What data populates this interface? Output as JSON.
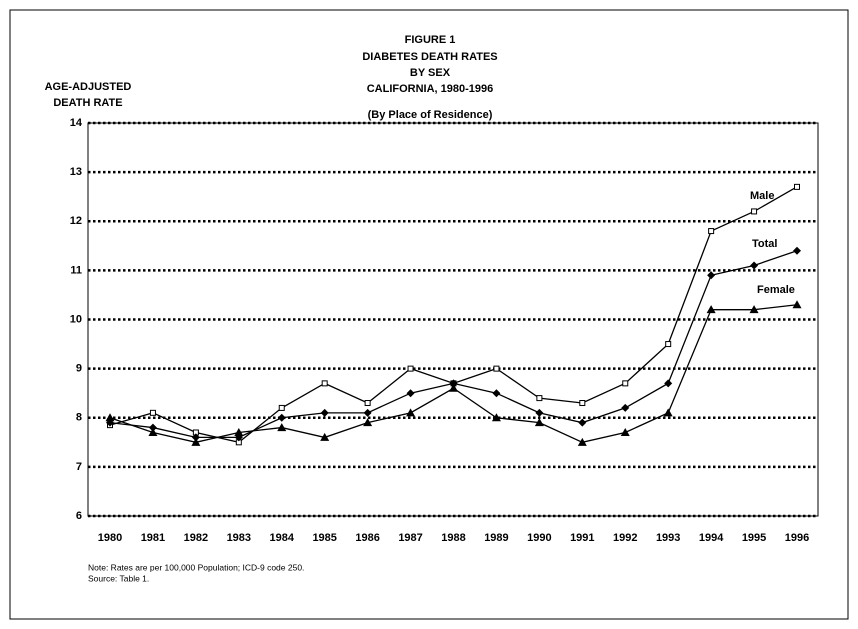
{
  "chart_data": {
    "type": "line",
    "title": [
      "FIGURE 1",
      "DIABETES DEATH RATES",
      "BY SEX",
      "CALIFORNIA, 1980-1996",
      "(By Place of Residence)"
    ],
    "y_label": [
      "AGE-ADJUSTED",
      "DEATH RATE"
    ],
    "categories": [
      "1980",
      "1981",
      "1982",
      "1983",
      "1984",
      "1985",
      "1986",
      "1987",
      "1988",
      "1989",
      "1990",
      "1991",
      "1992",
      "1993",
      "1994",
      "1995",
      "1996"
    ],
    "series": [
      {
        "name": "Male",
        "color": "#000000",
        "marker": "square",
        "values": [
          7.85,
          8.1,
          7.7,
          7.5,
          8.2,
          8.7,
          8.3,
          9.0,
          8.7,
          9.0,
          8.4,
          8.3,
          8.7,
          9.5,
          11.8,
          12.2,
          12.7
        ]
      },
      {
        "name": "Total",
        "color": "#000000",
        "marker": "diamond",
        "values": [
          7.9,
          7.8,
          7.6,
          7.6,
          8.0,
          8.1,
          8.1,
          8.5,
          8.7,
          8.5,
          8.1,
          7.9,
          8.2,
          8.7,
          10.9,
          11.1,
          11.4
        ]
      },
      {
        "name": "Female",
        "color": "#000000",
        "marker": "triangle",
        "values": [
          8.0,
          7.7,
          7.5,
          7.7,
          7.8,
          7.6,
          7.9,
          8.1,
          8.6,
          8.0,
          7.9,
          7.5,
          7.7,
          8.1,
          10.2,
          10.2,
          10.3
        ]
      }
    ],
    "ylim": [
      6,
      14
    ],
    "yticks": [
      6,
      7,
      8,
      9,
      10,
      11,
      12,
      13,
      14
    ],
    "grid": true,
    "notes": [
      "Note:  Rates are per 100,000 Population;  ICD-9 code 250.",
      "Source:  Table 1."
    ]
  }
}
